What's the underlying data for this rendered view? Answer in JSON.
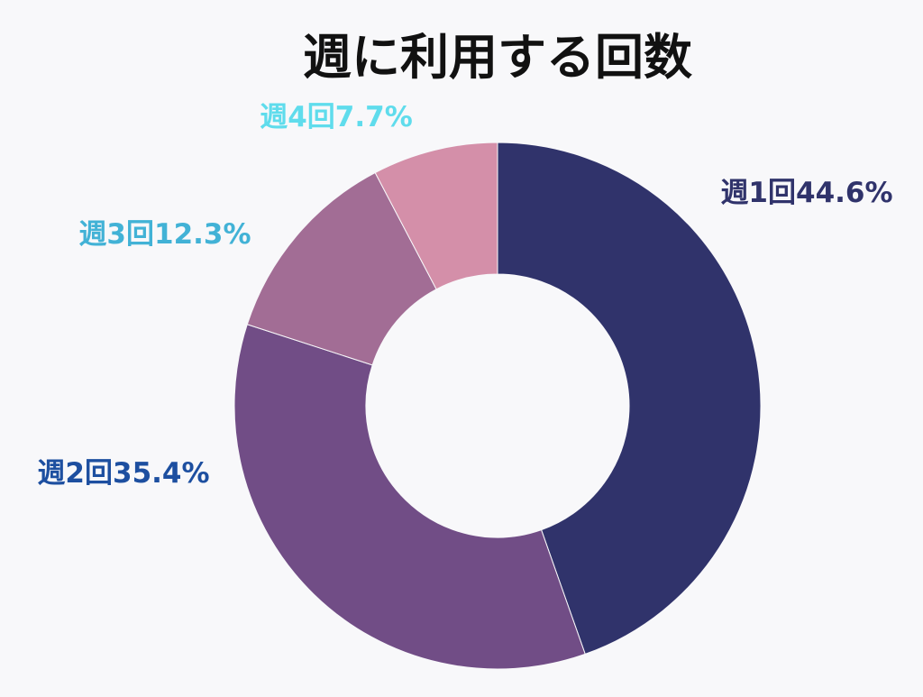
{
  "chart_data": {
    "type": "pie",
    "title": "週に利用する回数",
    "donut": true,
    "categories": [
      "週1回",
      "週2回",
      "週3回",
      "週4回"
    ],
    "values": [
      44.6,
      35.4,
      12.3,
      7.7
    ],
    "labels": [
      "週1回44.6%",
      "週2回35.4%",
      "週3回12.3%",
      "週4回7.7%"
    ],
    "colors": [
      "#30336b",
      "#714d86",
      "#a26d95",
      "#d48fa9"
    ],
    "label_colors": [
      "#30336b",
      "#1d4fa0",
      "#42b2d6",
      "#5fdcec"
    ],
    "background": "#f8f8fa"
  }
}
